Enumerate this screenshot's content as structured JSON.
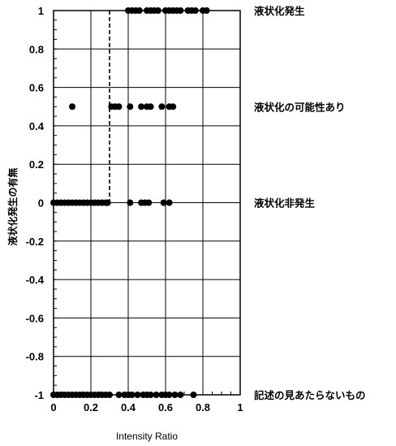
{
  "chart_data": {
    "type": "scatter",
    "xlabel": "Intensity Ratio",
    "ylabel": "液状化発生の有無",
    "xlim": [
      0,
      1
    ],
    "ylim": [
      -1,
      1
    ],
    "x_ticks": [
      "0",
      "0.2",
      "0.4",
      "0.6",
      "0.8",
      "1"
    ],
    "y_ticks": [
      "1",
      "0.8",
      "0.6",
      "0.4",
      "0.2",
      "0",
      "-0.2",
      "-0.4",
      "-0.6",
      "-0.8",
      "-1"
    ],
    "grid": true,
    "threshold_line": {
      "x": 0.3,
      "style": "dashed"
    },
    "annotations": [
      {
        "y": 1,
        "text": "液状化発生"
      },
      {
        "y": 0.5,
        "text": "液状化の可能性あり"
      },
      {
        "y": 0,
        "text": "液状化非発生"
      },
      {
        "y": -1,
        "text": "記述の見あたらないもの"
      }
    ],
    "series": [
      {
        "values": [
          {
            "x": 0.4,
            "y": 1
          },
          {
            "x": 0.42,
            "y": 1
          },
          {
            "x": 0.44,
            "y": 1
          },
          {
            "x": 0.46,
            "y": 1
          },
          {
            "x": 0.5,
            "y": 1
          },
          {
            "x": 0.52,
            "y": 1
          },
          {
            "x": 0.54,
            "y": 1
          },
          {
            "x": 0.56,
            "y": 1
          },
          {
            "x": 0.6,
            "y": 1
          },
          {
            "x": 0.62,
            "y": 1
          },
          {
            "x": 0.64,
            "y": 1
          },
          {
            "x": 0.66,
            "y": 1
          },
          {
            "x": 0.68,
            "y": 1
          },
          {
            "x": 0.72,
            "y": 1
          },
          {
            "x": 0.74,
            "y": 1
          },
          {
            "x": 0.76,
            "y": 1
          },
          {
            "x": 0.8,
            "y": 1
          },
          {
            "x": 0.82,
            "y": 1
          },
          {
            "x": 0.1,
            "y": 0.5
          },
          {
            "x": 0.31,
            "y": 0.5
          },
          {
            "x": 0.33,
            "y": 0.5
          },
          {
            "x": 0.35,
            "y": 0.5
          },
          {
            "x": 0.41,
            "y": 0.5
          },
          {
            "x": 0.47,
            "y": 0.5
          },
          {
            "x": 0.5,
            "y": 0.5
          },
          {
            "x": 0.52,
            "y": 0.5
          },
          {
            "x": 0.58,
            "y": 0.5
          },
          {
            "x": 0.62,
            "y": 0.5
          },
          {
            "x": 0.64,
            "y": 0.5
          },
          {
            "x": 0.0,
            "y": 0
          },
          {
            "x": 0.02,
            "y": 0
          },
          {
            "x": 0.04,
            "y": 0
          },
          {
            "x": 0.06,
            "y": 0
          },
          {
            "x": 0.08,
            "y": 0
          },
          {
            "x": 0.1,
            "y": 0
          },
          {
            "x": 0.12,
            "y": 0
          },
          {
            "x": 0.14,
            "y": 0
          },
          {
            "x": 0.16,
            "y": 0
          },
          {
            "x": 0.18,
            "y": 0
          },
          {
            "x": 0.2,
            "y": 0
          },
          {
            "x": 0.22,
            "y": 0
          },
          {
            "x": 0.24,
            "y": 0
          },
          {
            "x": 0.26,
            "y": 0
          },
          {
            "x": 0.28,
            "y": 0
          },
          {
            "x": 0.29,
            "y": 0
          },
          {
            "x": 0.41,
            "y": 0
          },
          {
            "x": 0.47,
            "y": 0
          },
          {
            "x": 0.49,
            "y": 0
          },
          {
            "x": 0.51,
            "y": 0
          },
          {
            "x": 0.59,
            "y": 0
          },
          {
            "x": 0.62,
            "y": 0
          },
          {
            "x": 0.0,
            "y": -1
          },
          {
            "x": 0.02,
            "y": -1
          },
          {
            "x": 0.04,
            "y": -1
          },
          {
            "x": 0.06,
            "y": -1
          },
          {
            "x": 0.08,
            "y": -1
          },
          {
            "x": 0.1,
            "y": -1
          },
          {
            "x": 0.12,
            "y": -1
          },
          {
            "x": 0.14,
            "y": -1
          },
          {
            "x": 0.16,
            "y": -1
          },
          {
            "x": 0.18,
            "y": -1
          },
          {
            "x": 0.2,
            "y": -1
          },
          {
            "x": 0.22,
            "y": -1
          },
          {
            "x": 0.24,
            "y": -1
          },
          {
            "x": 0.26,
            "y": -1
          },
          {
            "x": 0.28,
            "y": -1
          },
          {
            "x": 0.3,
            "y": -1
          },
          {
            "x": 0.35,
            "y": -1
          },
          {
            "x": 0.38,
            "y": -1
          },
          {
            "x": 0.4,
            "y": -1
          },
          {
            "x": 0.42,
            "y": -1
          },
          {
            "x": 0.45,
            "y": -1
          },
          {
            "x": 0.48,
            "y": -1
          },
          {
            "x": 0.5,
            "y": -1
          },
          {
            "x": 0.52,
            "y": -1
          },
          {
            "x": 0.55,
            "y": -1
          },
          {
            "x": 0.58,
            "y": -1
          },
          {
            "x": 0.6,
            "y": -1
          },
          {
            "x": 0.62,
            "y": -1
          },
          {
            "x": 0.65,
            "y": -1
          },
          {
            "x": 0.68,
            "y": -1
          },
          {
            "x": 0.75,
            "y": -1
          }
        ]
      }
    ]
  }
}
